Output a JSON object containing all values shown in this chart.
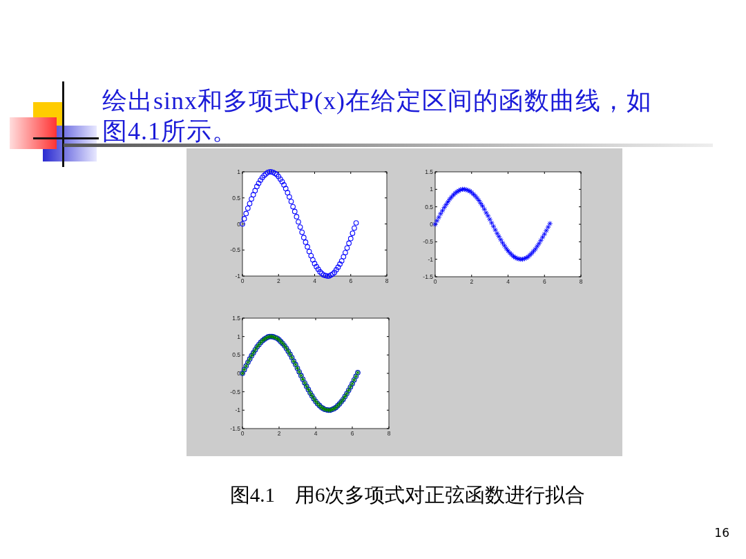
{
  "chart_data": [
    {
      "type": "scatter",
      "title": "绘出sinx和多项式P(x)在给定区间的函数曲线，如图4.1所示。",
      "annotations": [
        "图4.1　用6次多项式对正弦函数进行拟合",
        "16"
      ],
      "x": [
        0,
        0.1,
        0.2,
        0.3,
        0.4,
        0.5,
        0.6,
        0.7,
        0.8,
        0.9,
        1.0,
        1.1,
        1.2,
        1.3,
        1.4,
        1.5,
        1.6,
        1.7,
        1.8,
        1.9,
        2.0,
        2.1,
        2.2,
        2.3,
        2.4,
        2.5,
        2.6,
        2.7,
        2.8,
        2.9,
        3.0,
        3.1,
        3.2,
        3.3,
        3.4,
        3.5,
        3.6,
        3.7,
        3.8,
        3.9,
        4.0,
        4.1,
        4.2,
        4.3,
        4.4,
        4.5,
        4.6,
        4.7,
        4.8,
        4.9,
        5.0,
        5.1,
        5.2,
        5.3,
        5.4,
        5.5,
        5.6,
        5.7,
        5.8,
        5.9,
        6.0,
        6.1,
        6.2,
        6.3
      ],
      "series": [
        {
          "color": "#0000ff",
          "marker": "circle",
          "values": [
            0,
            0.1,
            0.2,
            0.3,
            0.39,
            0.48,
            0.56,
            0.64,
            0.72,
            0.78,
            0.84,
            0.89,
            0.93,
            0.96,
            0.99,
            1.0,
            1.0,
            0.99,
            0.97,
            0.95,
            0.91,
            0.86,
            0.81,
            0.75,
            0.68,
            0.6,
            0.52,
            0.43,
            0.33,
            0.24,
            0.14,
            0.04,
            -0.06,
            -0.16,
            -0.26,
            -0.35,
            -0.44,
            -0.53,
            -0.61,
            -0.69,
            -0.76,
            -0.82,
            -0.87,
            -0.92,
            -0.95,
            -0.98,
            -0.99,
            -1.0,
            -1.0,
            -0.98,
            -0.96,
            -0.93,
            -0.88,
            -0.83,
            -0.77,
            -0.71,
            -0.63,
            -0.55,
            -0.46,
            -0.37,
            -0.28,
            -0.18,
            -0.08,
            0.02
          ]
        }
      ],
      "xlim": [
        0,
        8
      ],
      "xticks": [
        0,
        2,
        4,
        6,
        8
      ],
      "ylim": [
        -1,
        1
      ],
      "yticks": [
        -1,
        -0.5,
        0,
        0.5,
        1
      ],
      "grid": false
    },
    {
      "type": "scatter",
      "x": [
        0,
        0.1,
        0.2,
        0.3,
        0.4,
        0.5,
        0.6,
        0.7,
        0.8,
        0.9,
        1.0,
        1.1,
        1.2,
        1.3,
        1.4,
        1.5,
        1.6,
        1.7,
        1.8,
        1.9,
        2.0,
        2.1,
        2.2,
        2.3,
        2.4,
        2.5,
        2.6,
        2.7,
        2.8,
        2.9,
        3.0,
        3.1,
        3.2,
        3.3,
        3.4,
        3.5,
        3.6,
        3.7,
        3.8,
        3.9,
        4.0,
        4.1,
        4.2,
        4.3,
        4.4,
        4.5,
        4.6,
        4.7,
        4.8,
        4.9,
        5.0,
        5.1,
        5.2,
        5.3,
        5.4,
        5.5,
        5.6,
        5.7,
        5.8,
        5.9,
        6.0,
        6.1,
        6.2,
        6.3
      ],
      "series": [
        {
          "color": "#0000ff",
          "marker": "cross",
          "values": [
            0,
            0.1,
            0.2,
            0.3,
            0.39,
            0.48,
            0.56,
            0.64,
            0.72,
            0.78,
            0.84,
            0.89,
            0.93,
            0.96,
            0.99,
            1.0,
            1.0,
            0.99,
            0.97,
            0.95,
            0.91,
            0.86,
            0.81,
            0.75,
            0.68,
            0.6,
            0.52,
            0.43,
            0.33,
            0.24,
            0.14,
            0.04,
            -0.06,
            -0.16,
            -0.26,
            -0.35,
            -0.44,
            -0.53,
            -0.61,
            -0.69,
            -0.76,
            -0.82,
            -0.87,
            -0.92,
            -0.95,
            -0.98,
            -0.99,
            -1.0,
            -1.0,
            -0.98,
            -0.96,
            -0.93,
            -0.88,
            -0.83,
            -0.77,
            -0.71,
            -0.63,
            -0.55,
            -0.46,
            -0.37,
            -0.28,
            -0.18,
            -0.08,
            0.02
          ]
        }
      ],
      "xlim": [
        0,
        8
      ],
      "xticks": [
        0,
        2,
        4,
        6,
        8
      ],
      "ylim": [
        -1.5,
        1.5
      ],
      "yticks": [
        -1.5,
        -1,
        -0.5,
        0,
        0.5,
        1,
        1.5
      ],
      "grid": false
    },
    {
      "type": "scatter",
      "x": [
        0,
        0.1,
        0.2,
        0.3,
        0.4,
        0.5,
        0.6,
        0.7,
        0.8,
        0.9,
        1.0,
        1.1,
        1.2,
        1.3,
        1.4,
        1.5,
        1.6,
        1.7,
        1.8,
        1.9,
        2.0,
        2.1,
        2.2,
        2.3,
        2.4,
        2.5,
        2.6,
        2.7,
        2.8,
        2.9,
        3.0,
        3.1,
        3.2,
        3.3,
        3.4,
        3.5,
        3.6,
        3.7,
        3.8,
        3.9,
        4.0,
        4.1,
        4.2,
        4.3,
        4.4,
        4.5,
        4.6,
        4.7,
        4.8,
        4.9,
        5.0,
        5.1,
        5.2,
        5.3,
        5.4,
        5.5,
        5.6,
        5.7,
        5.8,
        5.9,
        6.0,
        6.1,
        6.2,
        6.3
      ],
      "series": [
        {
          "color": "#0000ff",
          "marker": "circle",
          "values": [
            0,
            0.1,
            0.2,
            0.3,
            0.39,
            0.48,
            0.56,
            0.64,
            0.72,
            0.78,
            0.84,
            0.89,
            0.93,
            0.96,
            0.99,
            1.0,
            1.0,
            0.99,
            0.97,
            0.95,
            0.91,
            0.86,
            0.81,
            0.75,
            0.68,
            0.6,
            0.52,
            0.43,
            0.33,
            0.24,
            0.14,
            0.04,
            -0.06,
            -0.16,
            -0.26,
            -0.35,
            -0.44,
            -0.53,
            -0.61,
            -0.69,
            -0.76,
            -0.82,
            -0.87,
            -0.92,
            -0.95,
            -0.98,
            -0.99,
            -1.0,
            -1.0,
            -0.98,
            -0.96,
            -0.93,
            -0.88,
            -0.83,
            -0.77,
            -0.71,
            -0.63,
            -0.55,
            -0.46,
            -0.37,
            -0.28,
            -0.18,
            -0.08,
            0.02
          ]
        },
        {
          "color": "#008000",
          "marker": "cross",
          "values": [
            0,
            0.1,
            0.2,
            0.3,
            0.39,
            0.48,
            0.56,
            0.64,
            0.72,
            0.78,
            0.84,
            0.89,
            0.93,
            0.96,
            0.99,
            1.0,
            1.0,
            0.99,
            0.97,
            0.95,
            0.91,
            0.86,
            0.81,
            0.75,
            0.68,
            0.6,
            0.52,
            0.43,
            0.33,
            0.24,
            0.14,
            0.04,
            -0.06,
            -0.16,
            -0.26,
            -0.35,
            -0.44,
            -0.53,
            -0.61,
            -0.69,
            -0.76,
            -0.82,
            -0.87,
            -0.92,
            -0.95,
            -0.98,
            -0.99,
            -1.0,
            -1.0,
            -0.98,
            -0.96,
            -0.93,
            -0.88,
            -0.83,
            -0.77,
            -0.71,
            -0.63,
            -0.55,
            -0.46,
            -0.37,
            -0.28,
            -0.18,
            -0.08,
            0.02
          ]
        }
      ],
      "xlim": [
        0,
        8
      ],
      "xticks": [
        0,
        2,
        4,
        6,
        8
      ],
      "ylim": [
        -1.5,
        1.5
      ],
      "yticks": [
        -1.5,
        -1,
        -0.5,
        0,
        0.5,
        1,
        1.5
      ],
      "grid": false
    }
  ]
}
